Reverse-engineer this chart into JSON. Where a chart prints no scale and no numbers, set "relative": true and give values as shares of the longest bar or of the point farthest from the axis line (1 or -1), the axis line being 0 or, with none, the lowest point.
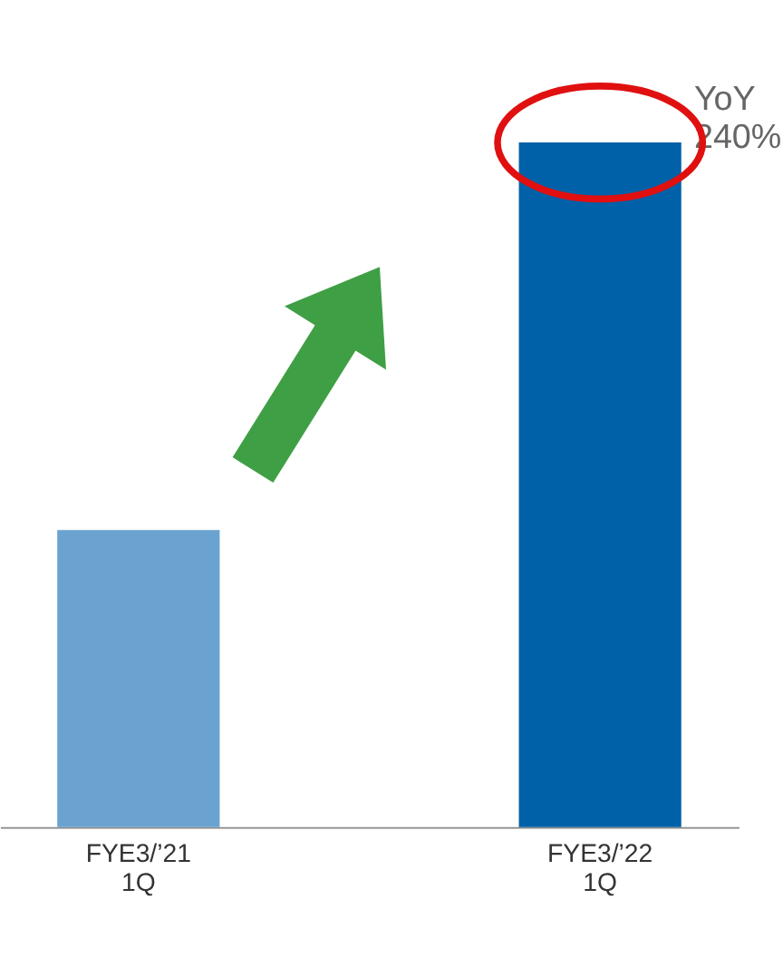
{
  "chart_data": {
    "type": "bar",
    "relative": true,
    "categories": [
      "FYE3/’21 1Q",
      "FYE3/’22 1Q"
    ],
    "colors": [
      "#6aa3d0",
      "#0060a8"
    ],
    "values": [
      0.434,
      1
    ],
    "annotations": [
      {
        "text": "YoY 240%",
        "x": "FYE3/’22 1Q",
        "y": 1
      }
    ]
  }
}
